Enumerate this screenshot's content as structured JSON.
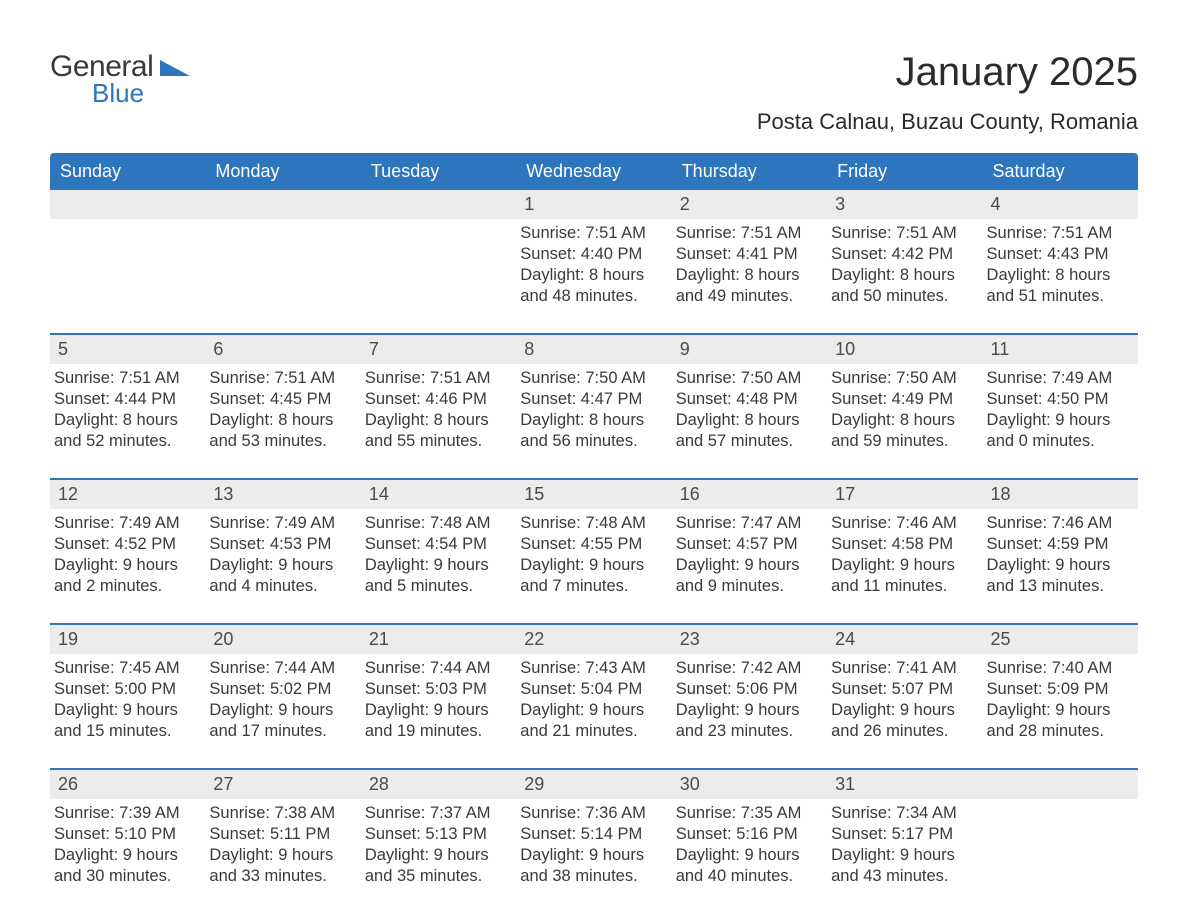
{
  "logo": {
    "general": "General",
    "blue": "Blue",
    "tri_color": "#2d76bd"
  },
  "title": "January 2025",
  "location": "Posta Calnau, Buzau County, Romania",
  "colors": {
    "header_bg": "#2d76bd",
    "daynum_bg": "#ececec",
    "text": "#3a3a3a",
    "border": "#2d76bd",
    "white": "#ffffff"
  },
  "weekdays": [
    "Sunday",
    "Monday",
    "Tuesday",
    "Wednesday",
    "Thursday",
    "Friday",
    "Saturday"
  ],
  "weeks": [
    [
      null,
      null,
      null,
      {
        "n": "1",
        "sr": "Sunrise: 7:51 AM",
        "ss": "Sunset: 4:40 PM",
        "d1": "Daylight: 8 hours",
        "d2": "and 48 minutes."
      },
      {
        "n": "2",
        "sr": "Sunrise: 7:51 AM",
        "ss": "Sunset: 4:41 PM",
        "d1": "Daylight: 8 hours",
        "d2": "and 49 minutes."
      },
      {
        "n": "3",
        "sr": "Sunrise: 7:51 AM",
        "ss": "Sunset: 4:42 PM",
        "d1": "Daylight: 8 hours",
        "d2": "and 50 minutes."
      },
      {
        "n": "4",
        "sr": "Sunrise: 7:51 AM",
        "ss": "Sunset: 4:43 PM",
        "d1": "Daylight: 8 hours",
        "d2": "and 51 minutes."
      }
    ],
    [
      {
        "n": "5",
        "sr": "Sunrise: 7:51 AM",
        "ss": "Sunset: 4:44 PM",
        "d1": "Daylight: 8 hours",
        "d2": "and 52 minutes."
      },
      {
        "n": "6",
        "sr": "Sunrise: 7:51 AM",
        "ss": "Sunset: 4:45 PM",
        "d1": "Daylight: 8 hours",
        "d2": "and 53 minutes."
      },
      {
        "n": "7",
        "sr": "Sunrise: 7:51 AM",
        "ss": "Sunset: 4:46 PM",
        "d1": "Daylight: 8 hours",
        "d2": "and 55 minutes."
      },
      {
        "n": "8",
        "sr": "Sunrise: 7:50 AM",
        "ss": "Sunset: 4:47 PM",
        "d1": "Daylight: 8 hours",
        "d2": "and 56 minutes."
      },
      {
        "n": "9",
        "sr": "Sunrise: 7:50 AM",
        "ss": "Sunset: 4:48 PM",
        "d1": "Daylight: 8 hours",
        "d2": "and 57 minutes."
      },
      {
        "n": "10",
        "sr": "Sunrise: 7:50 AM",
        "ss": "Sunset: 4:49 PM",
        "d1": "Daylight: 8 hours",
        "d2": "and 59 minutes."
      },
      {
        "n": "11",
        "sr": "Sunrise: 7:49 AM",
        "ss": "Sunset: 4:50 PM",
        "d1": "Daylight: 9 hours",
        "d2": "and 0 minutes."
      }
    ],
    [
      {
        "n": "12",
        "sr": "Sunrise: 7:49 AM",
        "ss": "Sunset: 4:52 PM",
        "d1": "Daylight: 9 hours",
        "d2": "and 2 minutes."
      },
      {
        "n": "13",
        "sr": "Sunrise: 7:49 AM",
        "ss": "Sunset: 4:53 PM",
        "d1": "Daylight: 9 hours",
        "d2": "and 4 minutes."
      },
      {
        "n": "14",
        "sr": "Sunrise: 7:48 AM",
        "ss": "Sunset: 4:54 PM",
        "d1": "Daylight: 9 hours",
        "d2": "and 5 minutes."
      },
      {
        "n": "15",
        "sr": "Sunrise: 7:48 AM",
        "ss": "Sunset: 4:55 PM",
        "d1": "Daylight: 9 hours",
        "d2": "and 7 minutes."
      },
      {
        "n": "16",
        "sr": "Sunrise: 7:47 AM",
        "ss": "Sunset: 4:57 PM",
        "d1": "Daylight: 9 hours",
        "d2": "and 9 minutes."
      },
      {
        "n": "17",
        "sr": "Sunrise: 7:46 AM",
        "ss": "Sunset: 4:58 PM",
        "d1": "Daylight: 9 hours",
        "d2": "and 11 minutes."
      },
      {
        "n": "18",
        "sr": "Sunrise: 7:46 AM",
        "ss": "Sunset: 4:59 PM",
        "d1": "Daylight: 9 hours",
        "d2": "and 13 minutes."
      }
    ],
    [
      {
        "n": "19",
        "sr": "Sunrise: 7:45 AM",
        "ss": "Sunset: 5:00 PM",
        "d1": "Daylight: 9 hours",
        "d2": "and 15 minutes."
      },
      {
        "n": "20",
        "sr": "Sunrise: 7:44 AM",
        "ss": "Sunset: 5:02 PM",
        "d1": "Daylight: 9 hours",
        "d2": "and 17 minutes."
      },
      {
        "n": "21",
        "sr": "Sunrise: 7:44 AM",
        "ss": "Sunset: 5:03 PM",
        "d1": "Daylight: 9 hours",
        "d2": "and 19 minutes."
      },
      {
        "n": "22",
        "sr": "Sunrise: 7:43 AM",
        "ss": "Sunset: 5:04 PM",
        "d1": "Daylight: 9 hours",
        "d2": "and 21 minutes."
      },
      {
        "n": "23",
        "sr": "Sunrise: 7:42 AM",
        "ss": "Sunset: 5:06 PM",
        "d1": "Daylight: 9 hours",
        "d2": "and 23 minutes."
      },
      {
        "n": "24",
        "sr": "Sunrise: 7:41 AM",
        "ss": "Sunset: 5:07 PM",
        "d1": "Daylight: 9 hours",
        "d2": "and 26 minutes."
      },
      {
        "n": "25",
        "sr": "Sunrise: 7:40 AM",
        "ss": "Sunset: 5:09 PM",
        "d1": "Daylight: 9 hours",
        "d2": "and 28 minutes."
      }
    ],
    [
      {
        "n": "26",
        "sr": "Sunrise: 7:39 AM",
        "ss": "Sunset: 5:10 PM",
        "d1": "Daylight: 9 hours",
        "d2": "and 30 minutes."
      },
      {
        "n": "27",
        "sr": "Sunrise: 7:38 AM",
        "ss": "Sunset: 5:11 PM",
        "d1": "Daylight: 9 hours",
        "d2": "and 33 minutes."
      },
      {
        "n": "28",
        "sr": "Sunrise: 7:37 AM",
        "ss": "Sunset: 5:13 PM",
        "d1": "Daylight: 9 hours",
        "d2": "and 35 minutes."
      },
      {
        "n": "29",
        "sr": "Sunrise: 7:36 AM",
        "ss": "Sunset: 5:14 PM",
        "d1": "Daylight: 9 hours",
        "d2": "and 38 minutes."
      },
      {
        "n": "30",
        "sr": "Sunrise: 7:35 AM",
        "ss": "Sunset: 5:16 PM",
        "d1": "Daylight: 9 hours",
        "d2": "and 40 minutes."
      },
      {
        "n": "31",
        "sr": "Sunrise: 7:34 AM",
        "ss": "Sunset: 5:17 PM",
        "d1": "Daylight: 9 hours",
        "d2": "and 43 minutes."
      },
      null
    ]
  ]
}
